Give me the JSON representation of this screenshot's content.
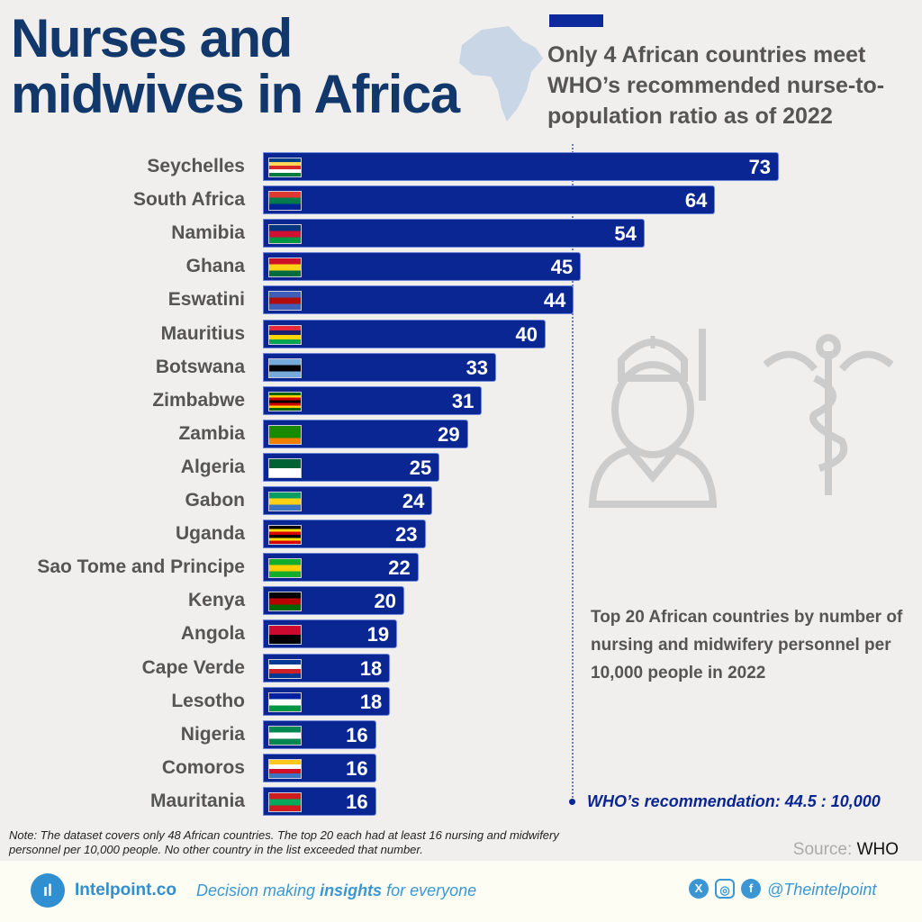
{
  "title_line1": "Nurses and",
  "title_line2": "midwives in Africa",
  "subtitle": "Only 4 African countries meet WHO’s recommended nurse-to-population ratio as of 2022",
  "description": "Top 20 African countries by number of nursing and midwifery personnel per 10,000 people in 2022",
  "who_label": "WHO’s recommendation: 44.5 : 10,000",
  "note": "Note: The dataset covers only 48 African countries. The top 20 each had at least 16 nursing and midwifery personnel per 10,000 people. No other country in the list exceeded that number.",
  "source_label": "Source:",
  "source": "WHO",
  "footer": {
    "brand": "Intelpoint.co",
    "tagline_pre": "Decision making ",
    "tagline_bold": "insights",
    "tagline_post": " for everyone",
    "handle": "@Theintelpoint",
    "social_icons": [
      "x-icon",
      "instagram-icon",
      "facebook-icon"
    ]
  },
  "colors": {
    "bar": "#0a2693",
    "title": "#12386b",
    "accent": "#2f8fd0"
  },
  "chart_data": {
    "type": "bar",
    "orientation": "horizontal",
    "categories": [
      "Seychelles",
      "South Africa",
      "Namibia",
      "Ghana",
      "Eswatini",
      "Mauritius",
      "Botswana",
      "Zimbabwe",
      "Zambia",
      "Algeria",
      "Gabon",
      "Uganda",
      "Sao Tome and Principe",
      "Kenya",
      "Angola",
      "Cape Verde",
      "Lesotho",
      "Nigeria",
      "Comoros",
      "Mauritania"
    ],
    "values": [
      73,
      64,
      54,
      45,
      44,
      40,
      33,
      31,
      29,
      25,
      24,
      23,
      22,
      20,
      19,
      18,
      18,
      16,
      16,
      16
    ],
    "reference_line": 44.5,
    "xlim": [
      0,
      73
    ],
    "grid": false,
    "flag_colors": [
      [
        "#003f87",
        "#fcd856",
        "#d62828",
        "#fff",
        "#007a3d"
      ],
      [
        "#de3831",
        "#007a4d",
        "#002395"
      ],
      [
        "#003580",
        "#d21034",
        "#009543"
      ],
      [
        "#ce1126",
        "#fcd116",
        "#006b3f"
      ],
      [
        "#3e5eb9",
        "#b10c0c",
        "#3e5eb9"
      ],
      [
        "#ea2839",
        "#1a206d",
        "#ffd500",
        "#00a551"
      ],
      [
        "#75aadb",
        "#000",
        "#75aadb"
      ],
      [
        "#006400",
        "#ffd200",
        "#d40000",
        "#000",
        "#d40000",
        "#ffd200",
        "#006400"
      ],
      [
        "#198a00",
        "#198a00",
        "#ef7d00"
      ],
      [
        "#006233",
        "#fff"
      ],
      [
        "#009e60",
        "#fcd116",
        "#3a75c4"
      ],
      [
        "#000",
        "#fcdc04",
        "#d90000",
        "#000",
        "#fcdc04",
        "#d90000"
      ],
      [
        "#12ad2b",
        "#ffce00",
        "#12ad2b"
      ],
      [
        "#000",
        "#bb0000",
        "#006600"
      ],
      [
        "#cc092f",
        "#000"
      ],
      [
        "#003893",
        "#fff",
        "#cf2027",
        "#003893"
      ],
      [
        "#00209f",
        "#fff",
        "#009543"
      ],
      [
        "#008751",
        "#fff",
        "#008751"
      ],
      [
        "#ffc61e",
        "#fff",
        "#ce1126",
        "#3a75c4"
      ],
      [
        "#d01c1f",
        "#00a95c",
        "#d01c1f"
      ]
    ]
  }
}
